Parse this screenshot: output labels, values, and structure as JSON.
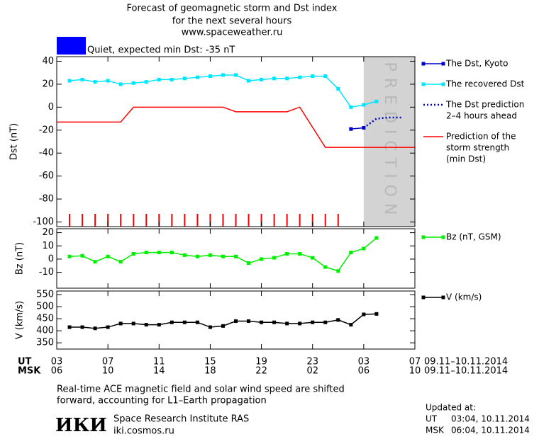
{
  "title": [
    "Forecast of geomagnetic storm and Dst index",
    "for the next several hours",
    "www.spaceweather.ru"
  ],
  "status": {
    "label": "Quiet, expected min Dst: -35 nT",
    "color": "#0000ff"
  },
  "chart_data": [
    {
      "type": "line",
      "ylabel": "Dst (nT)",
      "xlim": [
        0,
        28
      ],
      "ylim": [
        -104,
        44
      ],
      "yticks": [
        40,
        20,
        0,
        -20,
        -40,
        -60,
        -80,
        -100
      ],
      "series": [
        {
          "name": [
            "The Dst, Kyoto"
          ],
          "color": "#0000cc",
          "style": "solid",
          "marker": true,
          "x": [
            23,
            24
          ],
          "values": [
            -19,
            -18
          ]
        },
        {
          "name": [
            "The recovered Dst"
          ],
          "color": "#00e5ff",
          "style": "solid",
          "marker": true,
          "x": [
            1,
            2,
            3,
            4,
            5,
            6,
            7,
            8,
            9,
            10,
            11,
            12,
            13,
            14,
            15,
            16,
            17,
            18,
            19,
            20,
            21,
            22,
            23,
            24,
            25
          ],
          "values": [
            23,
            24,
            22,
            23,
            20,
            21,
            22,
            24,
            24,
            25,
            26,
            27,
            28,
            28,
            23,
            24,
            25,
            25,
            26,
            27,
            27,
            16,
            0,
            2,
            5
          ]
        },
        {
          "name": [
            "The Dst prediction",
            "2–4 hours ahead"
          ],
          "color": "#0000cc",
          "style": "dotted",
          "marker": false,
          "x": [
            24,
            25,
            26,
            27
          ],
          "values": [
            -18,
            -10,
            -9,
            -9
          ]
        },
        {
          "name": [
            "Prediction of the",
            "storm strength",
            "(min Dst)"
          ],
          "color": "#ff0000",
          "style": "solid",
          "marker": false,
          "x": [
            0,
            5,
            6,
            13,
            14,
            18,
            19,
            21,
            28
          ],
          "values": [
            -13,
            -13,
            0,
            0,
            -4,
            -4,
            0,
            -35,
            -35
          ]
        }
      ],
      "markers": {
        "color": "#ff0000",
        "x": [
          1,
          2,
          3,
          4,
          5,
          6,
          7,
          8,
          9,
          10,
          11,
          12,
          13,
          14,
          15,
          16,
          17,
          18,
          19,
          20,
          21,
          22
        ]
      },
      "prediction": {
        "label": "PREDICTION",
        "from": 24,
        "to": 28,
        "color": "#d3d3d3"
      }
    },
    {
      "type": "line",
      "ylabel": "Bz (nT)",
      "xlim": [
        0,
        28
      ],
      "ylim": [
        -22,
        23
      ],
      "yticks": [
        20,
        10,
        0,
        -10
      ],
      "series": [
        {
          "name": [
            "Bz (nT, GSM)"
          ],
          "color": "#00ee00",
          "style": "solid",
          "marker": true,
          "x": [
            1,
            2,
            3,
            4,
            5,
            6,
            7,
            8,
            9,
            10,
            11,
            12,
            13,
            14,
            15,
            16,
            17,
            18,
            19,
            20,
            21,
            22,
            23,
            24,
            25
          ],
          "values": [
            2,
            2.5,
            -2,
            2,
            -2,
            4,
            5,
            5,
            5,
            3,
            2,
            3,
            2,
            2,
            -3,
            0,
            1,
            4,
            4,
            1,
            -6,
            -9,
            5,
            8,
            16
          ]
        }
      ]
    },
    {
      "type": "line",
      "ylabel": "V (km/s)",
      "xlim": [
        0,
        28
      ],
      "ylim": [
        324,
        565
      ],
      "yticks": [
        550,
        500,
        450,
        400,
        350
      ],
      "series": [
        {
          "name": [
            "V (km/s)"
          ],
          "color": "#000000",
          "style": "solid",
          "marker": true,
          "x": [
            1,
            2,
            3,
            4,
            5,
            6,
            7,
            8,
            9,
            10,
            11,
            12,
            13,
            14,
            15,
            16,
            17,
            18,
            19,
            20,
            21,
            22,
            23,
            24,
            25
          ],
          "values": [
            415,
            415,
            410,
            415,
            430,
            430,
            425,
            425,
            435,
            435,
            435,
            415,
            420,
            440,
            440,
            435,
            435,
            430,
            430,
            435,
            435,
            445,
            425,
            468,
            470
          ]
        }
      ]
    }
  ],
  "ut": {
    "name": "UT",
    "dates": "09.11–10.11.2014",
    "ticks": [
      {
        "value": 0,
        "label": "03"
      },
      {
        "value": 4,
        "label": "07"
      },
      {
        "value": 8,
        "label": "11"
      },
      {
        "value": 12,
        "label": "15"
      },
      {
        "value": 16,
        "label": "19"
      },
      {
        "value": 20,
        "label": "23"
      },
      {
        "value": 24,
        "label": "03"
      },
      {
        "value": 28,
        "label": "07"
      }
    ]
  },
  "msk": {
    "name": "MSK",
    "dates": "09.11–10.11.2014",
    "ticks": [
      {
        "value": 0,
        "label": "06"
      },
      {
        "value": 4,
        "label": "10"
      },
      {
        "value": 8,
        "label": "14"
      },
      {
        "value": 12,
        "label": "18"
      },
      {
        "value": 16,
        "label": "22"
      },
      {
        "value": 20,
        "label": "02"
      },
      {
        "value": 24,
        "label": "06"
      },
      {
        "value": 28,
        "label": "10"
      }
    ]
  },
  "note": [
    "Real-time ACE magnetic field and solar wind speed are shifted",
    "forward, accounting for L1–Earth propagation"
  ],
  "institute": {
    "logo": "ИКИ",
    "name": "Space Research Institute RAS",
    "url": "iki.cosmos.ru"
  },
  "updated": {
    "label": "Updated at:",
    "ut": {
      "zone": "UT",
      "time": "03:04, 10.11.2014"
    },
    "msk": {
      "zone": "MSK",
      "time": "06:04, 10.11.2014"
    }
  }
}
